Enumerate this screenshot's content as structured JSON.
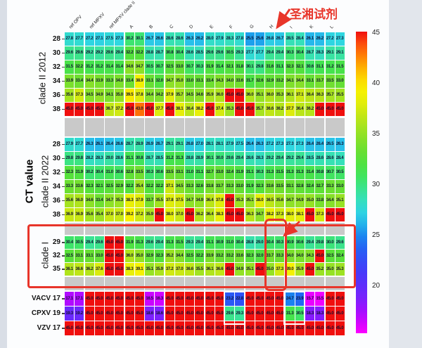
{
  "chart_data": {
    "type": "heatmap",
    "ylabel": "CT value",
    "columns": [
      "ref OPV",
      "ref MPXV",
      "ref MPXV clade II",
      "A",
      "B",
      "C",
      "D",
      "E",
      "F",
      "G",
      "H",
      "I",
      "K",
      "L"
    ],
    "replicates_per_column": 2,
    "sections": [
      {
        "label": "clade II 2012",
        "row_ticks": [
          "28",
          "30",
          "32",
          "34",
          "36",
          "38"
        ],
        "rows": [
          [
            [
              27.8,
              27.7
            ],
            [
              27.2,
              27.1
            ],
            [
              27.5,
              27.3
            ],
            [
              30.2,
              30.1
            ],
            [
              26.7,
              26.6
            ],
            [
              28.6,
              28.6
            ],
            [
              26.3,
              26.2
            ],
            [
              28.0,
              27.9
            ],
            [
              28.3,
              27.8
            ],
            [
              25.5,
              25.6
            ],
            [
              26.8,
              26.7
            ],
            [
              28.5,
              28.4
            ],
            [
              26.1,
              26.2
            ],
            [
              27.2,
              27.3
            ]
          ],
          [
            [
              29.6,
              29.6
            ],
            [
              29.2,
              29.2
            ],
            [
              29.6,
              29.4
            ],
            [
              32.2,
              32.2
            ],
            [
              28.8,
              28.7
            ],
            [
              30.8,
              30.4
            ],
            [
              28.6,
              28.5
            ],
            [
              29.6,
              29.6
            ],
            [
              30.5,
              29.3
            ],
            [
              27.7,
              27.7
            ],
            [
              29.4,
              29.4
            ],
            [
              30.3,
              30.4
            ],
            [
              28.7,
              28.3
            ],
            [
              29.1,
              29.1
            ]
          ],
          [
            [
              31.5,
              32.2
            ],
            [
              31.2,
              31.2
            ],
            [
              31.4,
              31.4
            ],
            [
              34.6,
              34.7
            ],
            [
              30.5,
              30.7
            ],
            [
              32.5,
              33.0
            ],
            [
              30.7,
              30.3
            ],
            [
              31.9,
              31.4
            ],
            [
              32.1,
              31.8
            ],
            [
              30.1,
              29.8
            ],
            [
              31.6,
              31.1
            ],
            [
              32.3,
              32.1
            ],
            [
              30.6,
              31.1
            ],
            [
              31.2,
              31.5
            ]
          ],
          [
            [
              33.9,
              33.4
            ],
            [
              34.4,
              33.9
            ],
            [
              33.3,
              34.0
            ],
            [
              33.4,
              38.9
            ],
            [
              33.1,
              32.0
            ],
            [
              34.7,
              35.0
            ],
            [
              33.0,
              33.1
            ],
            [
              33.4,
              34.3
            ],
            [
              34.0,
              33.6
            ],
            [
              31.7,
              32.6
            ],
            [
              32.9,
              33.2
            ],
            [
              34.1,
              34.4
            ],
            [
              33.1,
              33.7
            ],
            [
              33.5,
              33.0
            ]
          ],
          [
            [
              35.6,
              37.3
            ],
            [
              34.5,
              34.9
            ],
            [
              34.1,
              35.0
            ],
            [
              39.5,
              37.8
            ],
            [
              34.4,
              34.2
            ],
            [
              37.9,
              35.7
            ],
            [
              34.5,
              34.6
            ],
            [
              35.9,
              36.0
            ],
            [
              45.0,
              45.0
            ],
            [
              36.0,
              35.1
            ],
            [
              36.0,
              35.3
            ],
            [
              36.1,
              37.1
            ],
            [
              36.4,
              36.3
            ],
            [
              35.7,
              35.5
            ]
          ],
          [
            [
              45.0,
              45.0
            ],
            [
              45.0,
              45.0
            ],
            [
              36.7,
              37.2
            ],
            [
              45.0,
              43.0
            ],
            [
              45.0,
              37.7
            ],
            [
              45.0,
              38.1
            ],
            [
              36.4,
              38.2
            ],
            [
              45.0,
              37.4
            ],
            [
              35.3,
              45.0
            ],
            [
              45.0,
              35.7
            ],
            [
              36.6,
              36.2
            ],
            [
              37.7,
              36.4
            ],
            [
              36.2,
              45.0
            ],
            [
              45.0,
              45.0
            ]
          ]
        ]
      },
      {
        "label": "clade II 2022",
        "row_ticks": [
          "28",
          "30",
          "32",
          "34",
          "36",
          "38"
        ],
        "rows": [
          [
            [
              27.9,
              27.7
            ],
            [
              26.3,
              26.1
            ],
            [
              26.4,
              26.6
            ],
            [
              28.7,
              28.9
            ],
            [
              26.9,
              26.7
            ],
            [
              29.1,
              29.1
            ],
            [
              26.8,
              27.0
            ],
            [
              28.1,
              28.1
            ],
            [
              27.9,
              27.5
            ],
            [
              26.4,
              26.3
            ],
            [
              27.2,
              27.3
            ],
            [
              27.3,
              27.3
            ],
            [
              26.4,
              26.4
            ],
            [
              26.5,
              26.3
            ]
          ],
          [
            [
              29.8,
              29.8
            ],
            [
              28.2,
              28.3
            ],
            [
              29.0,
              28.6
            ],
            [
              31.1,
              30.8
            ],
            [
              28.7,
              28.5
            ],
            [
              31.2,
              31.3
            ],
            [
              28.8,
              28.9
            ],
            [
              30.1,
              30.0
            ],
            [
              29.6,
              29.4
            ],
            [
              28.6,
              28.3
            ],
            [
              29.2,
              29.4
            ],
            [
              29.2,
              29.4
            ],
            [
              28.5,
              28.6
            ],
            [
              28.6,
              28.4
            ]
          ],
          [
            [
              32.3,
              31.9
            ],
            [
              30.2,
              30.4
            ],
            [
              31.0,
              30.6
            ],
            [
              32.8,
              33.5
            ],
            [
              30.3,
              30.6
            ],
            [
              33.5,
              33.1
            ],
            [
              31.0,
              31.1
            ],
            [
              32.7,
              33.0
            ],
            [
              32.4,
              31.9
            ],
            [
              31.1,
              30.3
            ],
            [
              31.3,
              31.5
            ],
            [
              31.3,
              31.3
            ],
            [
              31.4,
              30.8
            ],
            [
              30.7,
              30.5
            ]
          ],
          [
            [
              33.3,
              33.6
            ],
            [
              32.3,
              32.1
            ],
            [
              32.5,
              32.9
            ],
            [
              32.2,
              35.4
            ],
            [
              32.2,
              32.2
            ],
            [
              37.1,
              34.5
            ],
            [
              33.3,
              32.6
            ],
            [
              33.8,
              33.7
            ],
            [
              33.3,
              33.0
            ],
            [
              31.9,
              32.3
            ],
            [
              33.6,
              33.5
            ],
            [
              33.1,
              32.8
            ],
            [
              32.4,
              32.7
            ],
            [
              33.3,
              33.0
            ]
          ],
          [
            [
              35.6,
              36.0
            ],
            [
              34.6,
              33.4
            ],
            [
              34.7,
              35.3
            ],
            [
              38.3,
              37.9
            ],
            [
              33.7,
              35.5
            ],
            [
              37.8,
              37.5
            ],
            [
              34.7,
              34.9
            ],
            [
              36.4,
              37.8
            ],
            [
              45.0,
              35.3
            ],
            [
              35.1,
              38.0
            ],
            [
              36.5,
              35.6
            ],
            [
              34.7,
              34.9
            ],
            [
              35.0,
              33.8
            ],
            [
              34.4,
              35.1
            ]
          ],
          [
            [
              36.9,
              36.9
            ],
            [
              35.6,
              35.4
            ],
            [
              37.0,
              37.0
            ],
            [
              39.2,
              37.2
            ],
            [
              35.9,
              45.0
            ],
            [
              38.0,
              37.0
            ],
            [
              45.0,
              36.2
            ],
            [
              36.4,
              38.3
            ],
            [
              45.0,
              45.0
            ],
            [
              36.3,
              34.7
            ],
            [
              38.2,
              37.3
            ],
            [
              38.0,
              38.1
            ],
            [
              45.0,
              37.3
            ],
            [
              45.0,
              45.0
            ]
          ]
        ]
      },
      {
        "label": "clade I",
        "row_ticks": [
          "29",
          "32",
          "35"
        ],
        "rows": [
          [
            [
              30.4,
              30.5
            ],
            [
              29.4,
              29.6
            ],
            [
              45.0,
              45.0
            ],
            [
              31.9,
              31.3
            ],
            [
              29.6,
              29.4
            ],
            [
              31.3,
              31.5
            ],
            [
              29.3,
              29.4
            ],
            [
              31.1,
              30.9
            ],
            [
              31.0,
              30.4
            ],
            [
              28.8,
              29.0
            ],
            [
              30.4,
              30.3
            ],
            [
              30.9,
              30.6
            ],
            [
              29.4,
              29.8
            ],
            [
              30.0,
              29.6
            ]
          ],
          [
            [
              32.5,
              33.1
            ],
            [
              33.1,
              33.0
            ],
            [
              45.0,
              45.0
            ],
            [
              36.0,
              35.0
            ],
            [
              32.9,
              32.3
            ],
            [
              35.2,
              34.4
            ],
            [
              32.5,
              32.2
            ],
            [
              33.9,
              33.2
            ],
            [
              33.2,
              33.6
            ],
            [
              32.3,
              32.0
            ],
            [
              33.7,
              33.3
            ],
            [
              34.0,
              34.0
            ],
            [
              34.3,
              45.0
            ],
            [
              32.5,
              32.4
            ]
          ],
          [
            [
              36.1,
              36.6
            ],
            [
              36.2,
              37.6
            ],
            [
              45.0,
              45.0
            ],
            [
              38.3,
              39.1
            ],
            [
              35.1,
              35.9
            ],
            [
              37.2,
              37.0
            ],
            [
              36.6,
              35.5
            ],
            [
              36.1,
              36.6
            ],
            [
              45.0,
              34.9
            ],
            [
              35.1,
              45.0
            ],
            [
              35.0,
              37.3
            ],
            [
              39.0,
              35.9
            ],
            [
              45.0,
              35.2
            ],
            [
              35.0,
              35.3
            ]
          ]
        ]
      },
      {
        "label": "",
        "row_ticks": [
          "VACV 17",
          "CPXV 19",
          "VZV 17"
        ],
        "rows": [
          [
            [
              17.1,
              17.1
            ],
            [
              45.0,
              45.0
            ],
            [
              45.0,
              45.0
            ],
            [
              45.0,
              45.0
            ],
            [
              16.5,
              16.3
            ],
            [
              45.0,
              45.0
            ],
            [
              45.0,
              45.0
            ],
            [
              45.0,
              45.0
            ],
            [
              23.2,
              22.8
            ],
            [
              45.0,
              45.0
            ],
            [
              45.0,
              45.0
            ],
            [
              24.7,
              23.9
            ],
            [
              15.7,
              15.5
            ],
            [
              45.0,
              45.0
            ]
          ],
          [
            [
              19.3,
              19.2
            ],
            [
              45.0,
              45.0
            ],
            [
              45.0,
              45.0
            ],
            [
              45.0,
              45.0
            ],
            [
              18.6,
              18.6
            ],
            [
              45.0,
              45.0
            ],
            [
              45.0,
              45.0
            ],
            [
              45.0,
              45.0
            ],
            [
              29.6,
              29.3
            ],
            [
              45.0,
              45.0
            ],
            [
              45.0,
              45.0
            ],
            [
              31.3,
              30.5
            ],
            [
              18.3,
              18.3
            ],
            [
              45.0,
              45.0
            ]
          ],
          [
            [
              45.0,
              45.0
            ],
            [
              45.0,
              45.0
            ],
            [
              45.0,
              45.0
            ],
            [
              45.0,
              45.0
            ],
            [
              45.0,
              45.0
            ],
            [
              45.0,
              45.0
            ],
            [
              45.0,
              45.0
            ],
            [
              45.0,
              45.0
            ],
            [
              45.0,
              45.0
            ],
            [
              45.0,
              45.0
            ],
            [
              45.0,
              45.0
            ],
            [
              45.0,
              45.0
            ],
            [
              45.0,
              45.0
            ],
            [
              45.0,
              45.0
            ]
          ]
        ]
      }
    ],
    "colorbar": {
      "ticks": [
        45,
        40,
        35,
        30,
        25,
        20
      ],
      "vmin": 15.2,
      "vmax": 45
    },
    "annotations": {
      "label": "圣湘试剂",
      "arrow_target_column": "H",
      "boxed_section": "clade I",
      "boxed_column": "H",
      "white_boxed_cells": [
        {
          "column": "F",
          "rows": [
            "VACV 17",
            "CPXV 19"
          ]
        },
        {
          "column": "I",
          "rows": [
            "VACV 17",
            "CPXV 19"
          ]
        }
      ]
    },
    "colors": {
      "annotation_red": "#e8352a",
      "separator_gray": "#c9c9c9",
      "value_max_red": "#f00f0e"
    }
  }
}
